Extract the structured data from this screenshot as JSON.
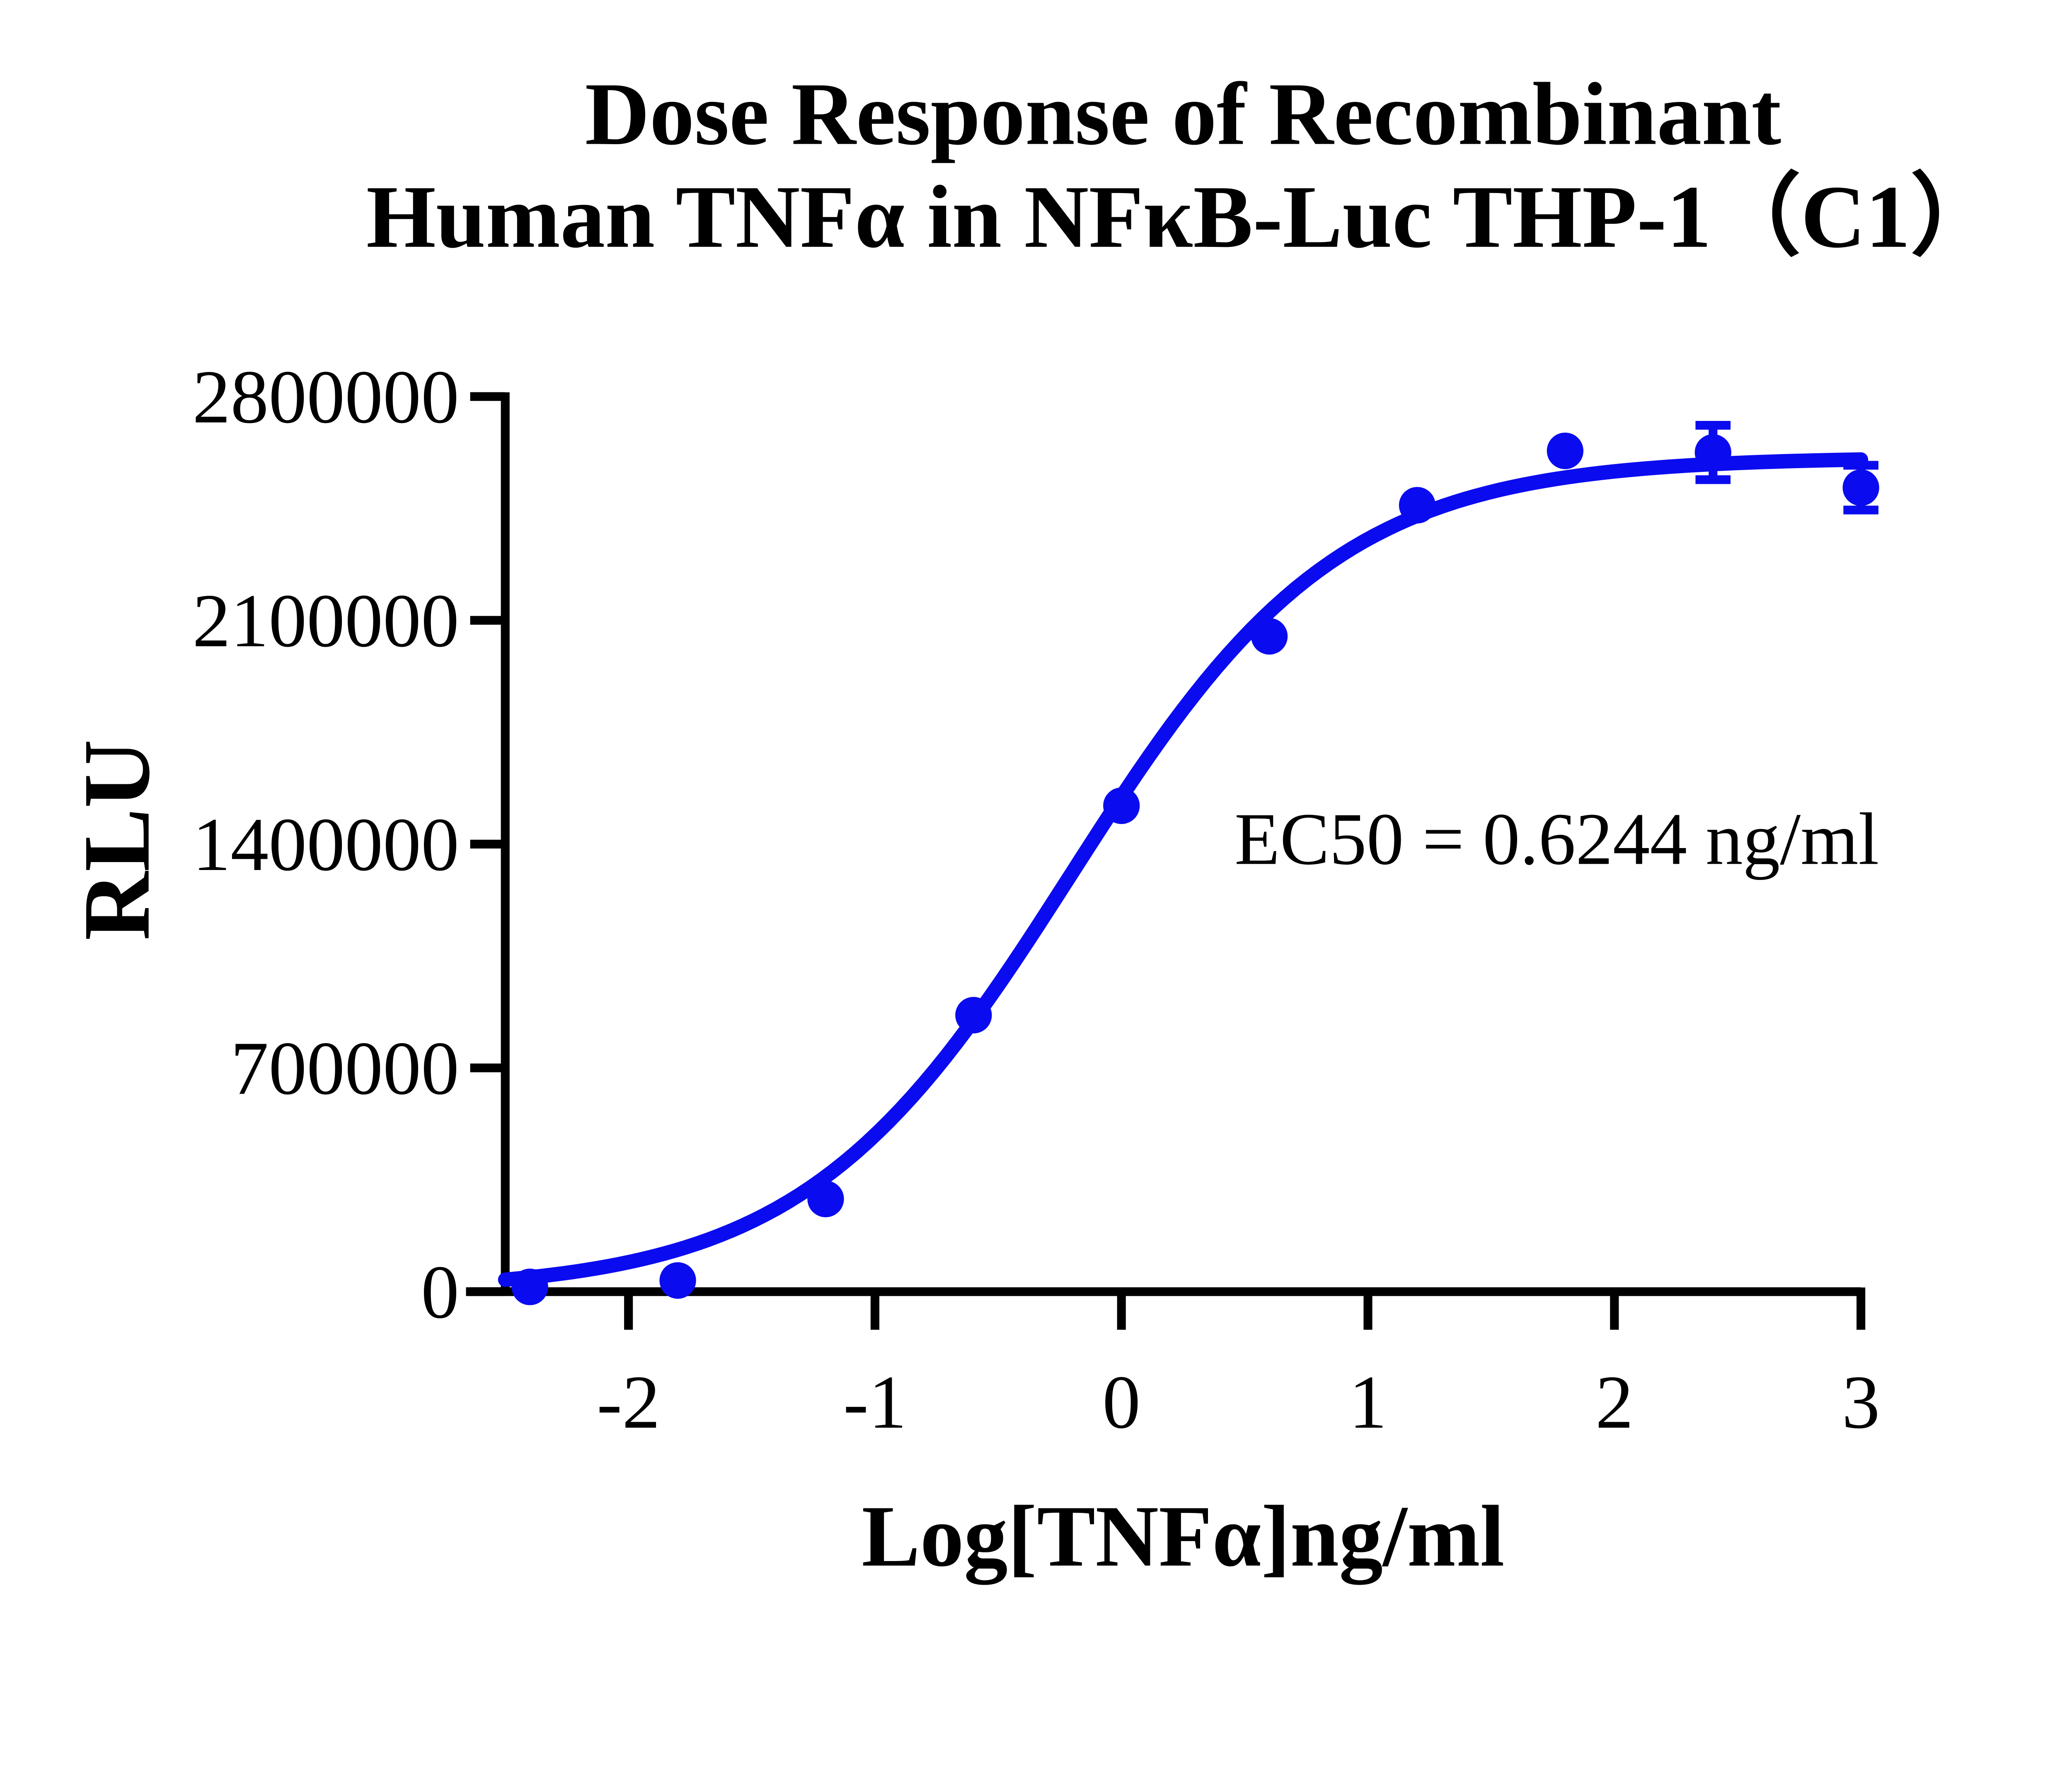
{
  "title": {
    "line1": "Dose Response of Recombinant",
    "line2": "Human TNFα in NFκB-Luc THP-1（C1）"
  },
  "axes": {
    "y_title": "RLU",
    "x_title": "Log[TNFα]ng/ml"
  },
  "annotation": {
    "ec50_label": "EC50 = 0.6244 ng/ml"
  },
  "colors": {
    "series": "#0b0bf0",
    "axis": "#000000",
    "text": "#000000",
    "background": "#ffffff"
  },
  "chart_data": {
    "type": "scatter",
    "title": "Dose Response of Recombinant Human TNFα in NFκB-Luc THP-1（C1）",
    "xlabel": "Log[TNFα]ng/ml",
    "ylabel": "RLU",
    "xlim": [
      -2.5,
      3
    ],
    "ylim": [
      0,
      2800000
    ],
    "x_ticks": [
      -2,
      -1,
      0,
      1,
      2,
      3
    ],
    "y_ticks": [
      0,
      700000,
      1400000,
      2100000,
      2800000
    ],
    "grid": false,
    "legend_position": "none",
    "series": [
      {
        "name": "Recombinant Human TNFα",
        "x": [
          -2.4,
          -1.8,
          -1.2,
          -0.6,
          0,
          0.6,
          1.2,
          1.8,
          2.4,
          3
        ],
        "y": [
          15000,
          35000,
          290000,
          865000,
          1520000,
          2050000,
          2460000,
          2630000,
          2625000,
          2515000
        ],
        "y_err": [
          0,
          0,
          0,
          0,
          0,
          0,
          0,
          0,
          85000,
          70000
        ]
      }
    ],
    "fit_curve": {
      "model": "4PL-sigmoid",
      "bottom": 0,
      "top": 2610000,
      "log_ec50": -0.2046,
      "hill": 0.8,
      "x_start": -2.5,
      "x_end": 3
    },
    "ec50_ng_ml": 0.6244
  }
}
